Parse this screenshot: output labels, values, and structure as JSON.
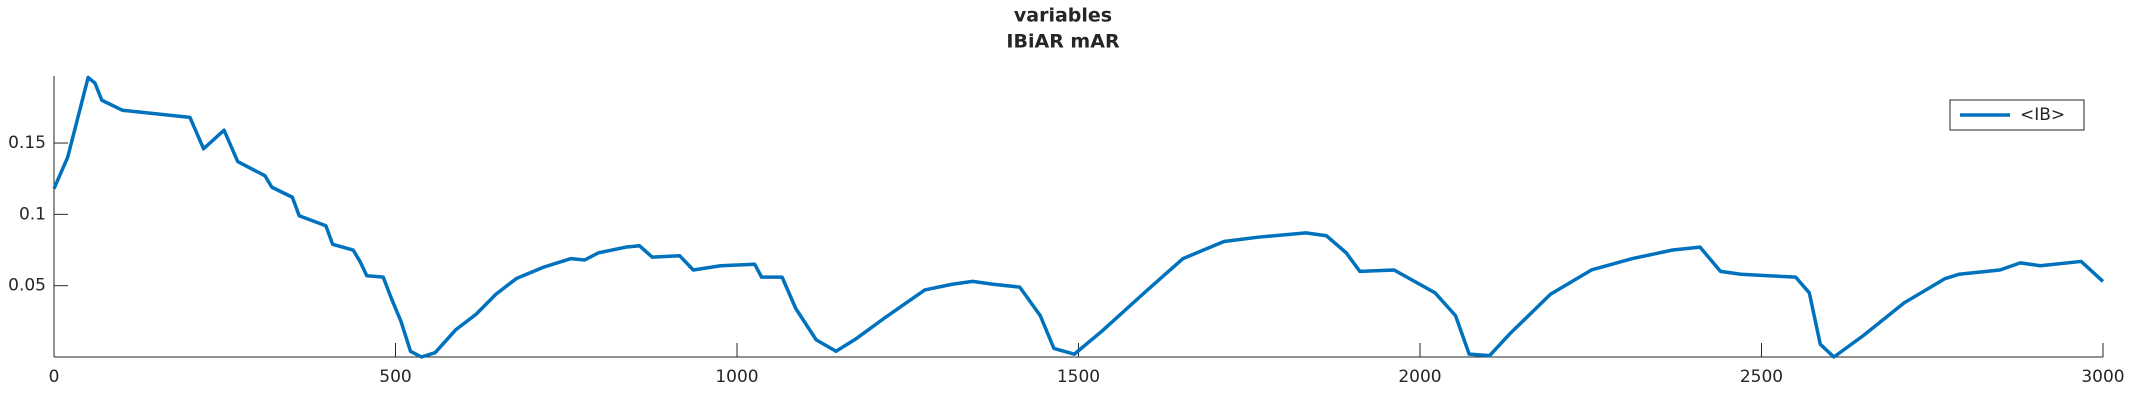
{
  "chart_data": {
    "type": "line",
    "title": "variables",
    "subtitle": "IBiAR mAR",
    "x": [
      0,
      20,
      50,
      60,
      70,
      100,
      199,
      219,
      249,
      269,
      309,
      319,
      349,
      359,
      398,
      408,
      438,
      448,
      458,
      482,
      494,
      508,
      522,
      538,
      558,
      588,
      618,
      647,
      677,
      717,
      757,
      777,
      797,
      837,
      857,
      876,
      916,
      936,
      976,
      1026,
      1036,
      1066,
      1086,
      1116,
      1145,
      1175,
      1215,
      1275,
      1315,
      1345,
      1375,
      1414,
      1444,
      1464,
      1494,
      1534,
      1594,
      1653,
      1713,
      1763,
      1833,
      1863,
      1892,
      1912,
      1962,
      1992,
      2022,
      2052,
      2072,
      2102,
      2131,
      2191,
      2251,
      2311,
      2370,
      2410,
      2440,
      2470,
      2510,
      2550,
      2570,
      2586,
      2606,
      2649,
      2709,
      2769,
      2789,
      2849,
      2879,
      2908,
      2968,
      3000
    ],
    "series": [
      {
        "name": "<IB>",
        "color": "#0072bd",
        "values": [
          0.118,
          0.14,
          0.196,
          0.192,
          0.18,
          0.173,
          0.168,
          0.146,
          0.159,
          0.137,
          0.127,
          0.119,
          0.112,
          0.099,
          0.092,
          0.079,
          0.075,
          0.067,
          0.057,
          0.056,
          0.041,
          0.025,
          0.004,
          0,
          0.003,
          0.019,
          0.03,
          0.044,
          0.055,
          0.063,
          0.069,
          0.068,
          0.073,
          0.077,
          0.078,
          0.07,
          0.071,
          0.061,
          0.064,
          0.065,
          0.056,
          0.056,
          0.034,
          0.012,
          0.004,
          0.013,
          0.027,
          0.047,
          0.051,
          0.053,
          0.051,
          0.049,
          0.029,
          0.006,
          0.002,
          0.018,
          0.044,
          0.069,
          0.081,
          0.084,
          0.087,
          0.085,
          0.073,
          0.06,
          0.061,
          0.053,
          0.045,
          0.029,
          0.002,
          0.001,
          0.016,
          0.044,
          0.061,
          0.069,
          0.075,
          0.077,
          0.06,
          0.058,
          0.057,
          0.056,
          0.045,
          0.009,
          0,
          0.015,
          0.038,
          0.055,
          0.058,
          0.061,
          0.066,
          0.064,
          0.067,
          0.053
        ]
      }
    ],
    "xlim": [
      0,
      3000
    ],
    "xticks": [
      0,
      500,
      1000,
      1500,
      2000,
      2500,
      3000
    ],
    "ylim": [
      0,
      0.197
    ],
    "yticks": [
      0.05,
      0.1,
      0.15
    ],
    "legend": "upper right"
  }
}
